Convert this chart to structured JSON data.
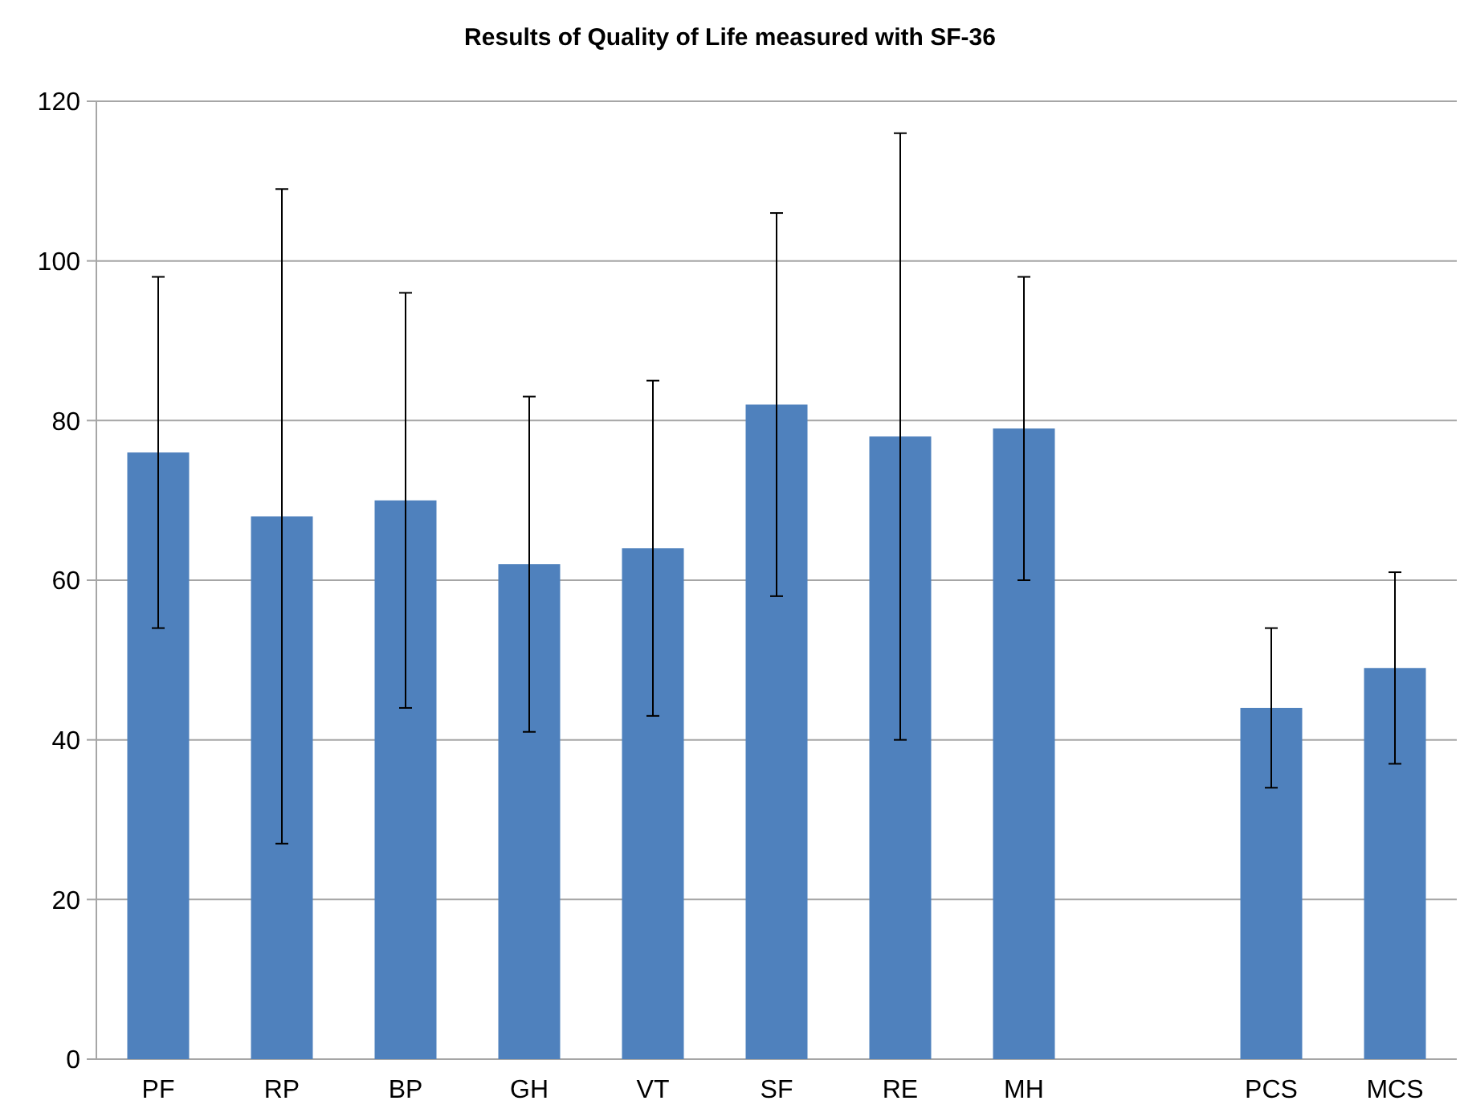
{
  "chart_data": {
    "type": "bar",
    "title": "Results of Quality of Life measured with SF-36",
    "categories": [
      "PF",
      "RP",
      "BP",
      "GH",
      "VT",
      "SF",
      "RE",
      "MH",
      null,
      "PCS",
      "MCS"
    ],
    "values": [
      76,
      68,
      70,
      62,
      64,
      82,
      78,
      79,
      null,
      44,
      49
    ],
    "errors": [
      22,
      41,
      26,
      21,
      21,
      24,
      38,
      19,
      null,
      10,
      12
    ],
    "color": "#4f81bd",
    "ylim": [
      0,
      120
    ],
    "yticks": [
      0,
      20,
      40,
      60,
      80,
      100,
      120
    ],
    "grid": "y"
  }
}
